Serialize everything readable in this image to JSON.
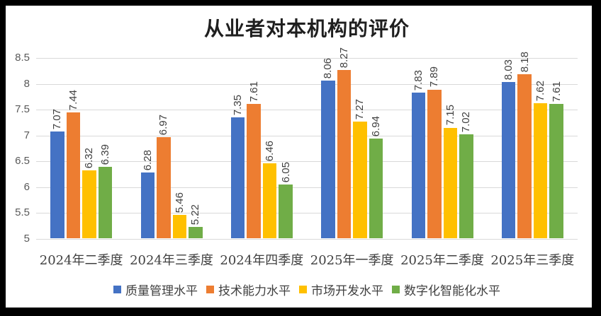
{
  "frame": {
    "border_color": "#000000",
    "chart_background": "#FFFFFF"
  },
  "chart_data": {
    "type": "bar",
    "title": "从业者对本机构的评价",
    "categories": [
      "2024年二季度",
      "2024年三季度",
      "2024年四季度",
      "2025年一季度",
      "2025年二季度",
      "2025年三季度"
    ],
    "series": [
      {
        "name": "质量管理水平",
        "color": "#4472C4",
        "values": [
          7.07,
          6.28,
          7.35,
          8.06,
          7.83,
          8.03
        ]
      },
      {
        "name": "技术能力水平",
        "color": "#ED7D31",
        "values": [
          7.44,
          6.97,
          7.61,
          8.27,
          7.89,
          8.18
        ]
      },
      {
        "name": "市场开发水平",
        "color": "#FFC000",
        "values": [
          6.32,
          5.46,
          6.46,
          7.27,
          7.15,
          7.62
        ]
      },
      {
        "name": "数字化智能化水平",
        "color": "#70AD47",
        "values": [
          6.39,
          5.22,
          6.05,
          6.94,
          7.02,
          7.61
        ]
      }
    ],
    "y_axis": {
      "min": 5,
      "max": 8.5,
      "step": 0.5,
      "tick_labels": [
        "8.5",
        "8",
        "7.5",
        "7",
        "6.5",
        "6",
        "5.5",
        "5"
      ]
    },
    "grid": true,
    "gridline_color": "#D9D9D9",
    "data_labels": true,
    "data_label_rotation": 90,
    "data_label_color": "#404040",
    "axis_label_color": "#595959",
    "legend_position": "bottom",
    "legend": [
      "质量管理水平",
      "技术能力水平",
      "市场开发水平",
      "数字化智能化水平"
    ]
  }
}
